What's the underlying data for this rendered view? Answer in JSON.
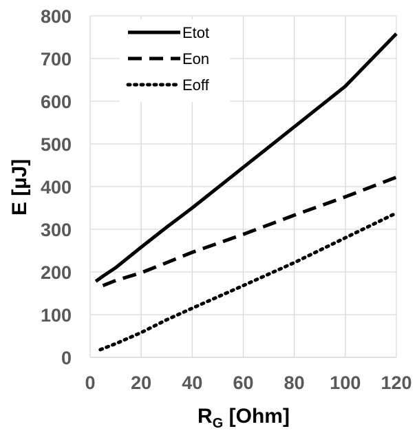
{
  "chart_data": {
    "type": "line",
    "xlabel": "R",
    "xlabel_sub": "G",
    "xlabel_unit": " [Ohm]",
    "ylabel": "E  [µJ]",
    "xlim": [
      0,
      120
    ],
    "ylim": [
      0,
      800
    ],
    "x_ticks": [
      0,
      20,
      40,
      60,
      80,
      100,
      120
    ],
    "y_ticks": [
      0,
      100,
      200,
      300,
      400,
      500,
      600,
      700,
      800
    ],
    "grid": true,
    "legend_position": "top-left",
    "series": [
      {
        "name": "Etot",
        "style": "solid",
        "color": "#000000",
        "x": [
          2.2,
          5,
          10,
          20,
          30,
          40,
          60,
          80,
          100,
          120
        ],
        "y": [
          178,
          190,
          210,
          258,
          305,
          350,
          445,
          540,
          635,
          758
        ]
      },
      {
        "name": "Eon",
        "style": "dashed",
        "color": "#000000",
        "x": [
          5,
          10,
          20,
          30,
          40,
          60,
          80,
          100,
          120
        ],
        "y": [
          168,
          180,
          198,
          222,
          246,
          288,
          333,
          376,
          422
        ]
      },
      {
        "name": "Eoff",
        "style": "dotted",
        "color": "#000000",
        "x": [
          4,
          10,
          20,
          30,
          40,
          60,
          80,
          100,
          120
        ],
        "y": [
          18,
          32,
          58,
          88,
          115,
          168,
          222,
          280,
          338
        ]
      }
    ]
  }
}
